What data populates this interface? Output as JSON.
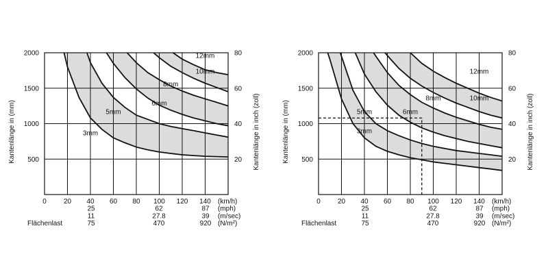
{
  "chart_data": [
    {
      "type": "line",
      "id": "left",
      "ylabel": "Kantenlänge in (mm)",
      "ylabel_right": "Kantenlänge in inch (zoll)",
      "xlim": [
        0,
        160
      ],
      "ylim": [
        0,
        2000
      ],
      "ylim_right": [
        0,
        80
      ],
      "x_ticks": [
        0,
        20,
        40,
        60,
        80,
        100,
        120,
        140
      ],
      "y_ticks": [
        500,
        1000,
        1500,
        2000
      ],
      "y_right_ticks": [
        20,
        40,
        60,
        80
      ],
      "x_ticks_labels": [
        "0",
        "20",
        "40",
        "60",
        "80",
        "100",
        "120",
        "140"
      ],
      "y_ticks_labels": [
        "500",
        "1000",
        "1500",
        "2000"
      ],
      "y_right_ticks_labels": [
        "20",
        "40",
        "60",
        "80"
      ],
      "secondary_rows": [
        {
          "values": [
            "25",
            "62",
            "87"
          ],
          "unit": "(mph)"
        },
        {
          "values": [
            "11",
            "27.8",
            "39"
          ],
          "unit": "(m/sec)"
        },
        {
          "label": "Flächenlast",
          "values": [
            "75",
            "470",
            "920"
          ],
          "unit": "(N/m²)"
        }
      ],
      "x_unit_label": "(km/h)",
      "shaded_bands": [
        [
          "3mm",
          "5mm"
        ],
        [
          "6mm",
          "8mm"
        ],
        [
          "10mm",
          "12mm"
        ]
      ],
      "series": [
        {
          "name": "3mm",
          "x": [
            17,
            20,
            30,
            40,
            50,
            60,
            70,
            80,
            90,
            100,
            110,
            120,
            130,
            140,
            150,
            160
          ],
          "y": [
            2000,
            1800,
            1370,
            1080,
            920,
            800,
            730,
            670,
            630,
            600,
            580,
            560,
            550,
            540,
            535,
            530
          ]
        },
        {
          "name": "5mm",
          "x": [
            37,
            40,
            50,
            60,
            70,
            80,
            90,
            100,
            110,
            120,
            130,
            140,
            150,
            160
          ],
          "y": [
            2000,
            1860,
            1570,
            1370,
            1230,
            1120,
            1060,
            1000,
            960,
            930,
            900,
            870,
            840,
            810
          ]
        },
        {
          "name": "6mm",
          "x": [
            54,
            60,
            70,
            80,
            90,
            100,
            110,
            120,
            130,
            140,
            150,
            160
          ],
          "y": [
            2000,
            1850,
            1650,
            1490,
            1360,
            1260,
            1190,
            1130,
            1080,
            1040,
            1000,
            970
          ]
        },
        {
          "name": "8mm",
          "x": [
            72,
            80,
            90,
            100,
            110,
            120,
            130,
            140,
            150,
            160
          ],
          "y": [
            2000,
            1860,
            1720,
            1620,
            1530,
            1460,
            1400,
            1350,
            1300,
            1250
          ]
        },
        {
          "name": "10mm",
          "x": [
            95,
            100,
            110,
            120,
            130,
            140,
            150,
            160
          ],
          "y": [
            2000,
            1930,
            1810,
            1720,
            1640,
            1570,
            1510,
            1450
          ]
        },
        {
          "name": "12mm",
          "x": [
            112,
            120,
            130,
            140,
            150,
            160
          ],
          "y": [
            2000,
            1910,
            1830,
            1760,
            1720,
            1690
          ]
        }
      ],
      "curve_labels": [
        {
          "text": "3mm",
          "x": 40,
          "y": 870
        },
        {
          "text": "5mm",
          "x": 60,
          "y": 1170
        },
        {
          "text": "6mm",
          "x": 100,
          "y": 1290
        },
        {
          "text": "8mm",
          "x": 110,
          "y": 1560
        },
        {
          "text": "10mm",
          "x": 140,
          "y": 1740
        },
        {
          "text": "12mm",
          "x": 140,
          "y": 1960
        }
      ]
    },
    {
      "type": "line",
      "id": "right",
      "ylabel": "Kantenlänge in (mm)",
      "ylabel_right": "Kantenlänge in inch (zoll)",
      "xlim": [
        0,
        160
      ],
      "ylim": [
        0,
        2000
      ],
      "ylim_right": [
        0,
        80
      ],
      "x_ticks": [
        0,
        20,
        40,
        60,
        80,
        100,
        120,
        140
      ],
      "y_ticks": [
        500,
        1000,
        1500,
        2000
      ],
      "y_right_ticks": [
        20,
        40,
        60,
        80
      ],
      "x_ticks_labels": [
        "0",
        "20",
        "40",
        "60",
        "80",
        "100",
        "120",
        "140"
      ],
      "y_ticks_labels": [
        "500",
        "1000",
        "1500",
        "2000"
      ],
      "y_right_ticks_labels": [
        "20",
        "40",
        "60",
        "80"
      ],
      "secondary_rows": [
        {
          "values": [
            "25",
            "62",
            "87"
          ],
          "unit": "(mph)"
        },
        {
          "values": [
            "11",
            "27.8",
            "39"
          ],
          "unit": "(m/sec)"
        },
        {
          "label": "Flächenlast",
          "values": [
            "75",
            "470",
            "920"
          ],
          "unit": "(N/m²)"
        }
      ],
      "x_unit_label": "(km/h)",
      "shaded_bands": [
        [
          "3mm",
          "5mm"
        ],
        [
          "6mm",
          "8mm"
        ],
        [
          "10mm",
          "12mm"
        ]
      ],
      "series": [
        {
          "name": "3mm",
          "x": [
            8,
            10,
            20,
            30,
            40,
            50,
            60,
            70,
            80,
            90,
            100,
            110,
            120,
            130,
            140,
            150,
            160
          ],
          "y": [
            2000,
            1900,
            1350,
            1000,
            800,
            680,
            610,
            560,
            520,
            490,
            460,
            440,
            420,
            400,
            380,
            360,
            340
          ]
        },
        {
          "name": "5mm",
          "x": [
            19,
            20,
            30,
            40,
            50,
            60,
            70,
            80,
            90,
            100,
            110,
            120,
            130,
            140,
            150,
            160
          ],
          "y": [
            2000,
            1950,
            1470,
            1170,
            1000,
            900,
            830,
            770,
            720,
            680,
            650,
            620,
            600,
            580,
            560,
            540
          ]
        },
        {
          "name": "6mm",
          "x": [
            32,
            40,
            50,
            60,
            70,
            80,
            90,
            100,
            110,
            120,
            130,
            140,
            150,
            160
          ],
          "y": [
            2000,
            1700,
            1450,
            1260,
            1120,
            1020,
            940,
            880,
            830,
            790,
            750,
            720,
            690,
            660
          ]
        },
        {
          "name": "8mm",
          "x": [
            48,
            50,
            60,
            70,
            80,
            90,
            100,
            110,
            120,
            130,
            140,
            150,
            160
          ],
          "y": [
            2000,
            1950,
            1720,
            1540,
            1410,
            1300,
            1220,
            1150,
            1090,
            1040,
            990,
            950,
            920
          ]
        },
        {
          "name": "10mm",
          "x": [
            58,
            60,
            70,
            80,
            90,
            100,
            110,
            120,
            130,
            140,
            150,
            160
          ],
          "y": [
            2000,
            1960,
            1780,
            1640,
            1530,
            1440,
            1360,
            1290,
            1230,
            1170,
            1120,
            1080
          ]
        },
        {
          "name": "12mm",
          "x": [
            80,
            90,
            100,
            110,
            120,
            130,
            140,
            150,
            160
          ],
          "y": [
            2000,
            1850,
            1740,
            1650,
            1570,
            1500,
            1430,
            1370,
            1320
          ]
        }
      ],
      "curve_labels": [
        {
          "text": "3mm",
          "x": 40,
          "y": 900
        },
        {
          "text": "5mm",
          "x": 40,
          "y": 1170
        },
        {
          "text": "6mm",
          "x": 80,
          "y": 1170
        },
        {
          "text": "8mm",
          "x": 100,
          "y": 1360
        },
        {
          "text": "10mm",
          "x": 140,
          "y": 1360
        },
        {
          "text": "12mm",
          "x": 140,
          "y": 1740
        }
      ],
      "reference_lines": {
        "x": 90,
        "y": 1080
      }
    }
  ]
}
